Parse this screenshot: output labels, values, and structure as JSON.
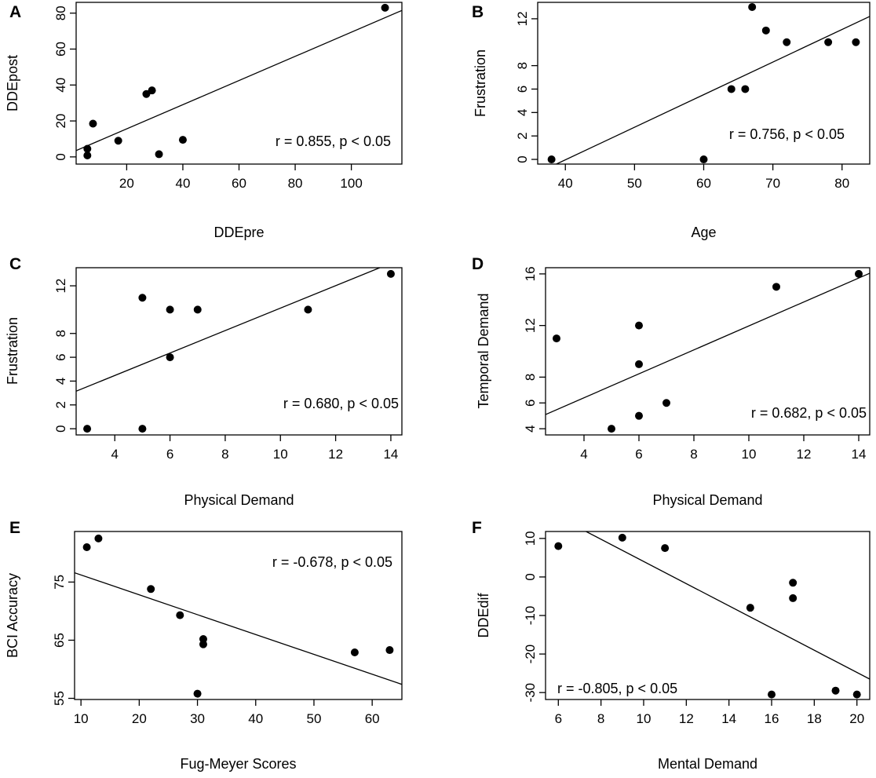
{
  "figure": {
    "background": "#ffffff",
    "ink": "#000000"
  },
  "chart_data": [
    {
      "id": "A",
      "type": "scatter",
      "panel_label": "A",
      "xlabel": "DDEpre",
      "ylabel": "DDEpost",
      "xlim": [
        2,
        118
      ],
      "ylim": [
        -4,
        86
      ],
      "xticks": [
        20,
        40,
        60,
        80,
        100
      ],
      "yticks": [
        0,
        20,
        40,
        60,
        80
      ],
      "annotation": "r = 0.855, p < 0.05",
      "annotation_position": "lower-right",
      "points": [
        [
          6,
          4.5
        ],
        [
          6,
          0.8
        ],
        [
          8,
          18.5
        ],
        [
          17,
          9
        ],
        [
          27,
          35
        ],
        [
          29,
          37
        ],
        [
          31.5,
          1.5
        ],
        [
          40,
          9.5
        ],
        [
          112,
          83
        ]
      ],
      "fit_line": [
        [
          2,
          3.5
        ],
        [
          118,
          81.5
        ]
      ]
    },
    {
      "id": "B",
      "type": "scatter",
      "panel_label": "B",
      "xlabel": "Age",
      "ylabel": "Frustration",
      "xlim": [
        36,
        84
      ],
      "ylim": [
        -0.4,
        13.4
      ],
      "xticks": [
        40,
        50,
        60,
        70,
        80
      ],
      "yticks": [
        0,
        2,
        4,
        6,
        8,
        12
      ],
      "annotation": "r = 0.756, p < 0.05",
      "annotation_position": "lower-right",
      "points": [
        [
          38,
          0
        ],
        [
          60,
          0
        ],
        [
          64,
          6
        ],
        [
          66,
          6
        ],
        [
          67,
          13
        ],
        [
          69,
          11
        ],
        [
          72,
          10
        ],
        [
          78,
          10
        ],
        [
          82,
          10
        ]
      ],
      "fit_line": [
        [
          38.7,
          -0.4
        ],
        [
          84,
          12.2
        ]
      ]
    },
    {
      "id": "C",
      "type": "scatter",
      "panel_label": "C",
      "xlabel": "Physical Demand",
      "ylabel": "Frustration",
      "xlim": [
        2.6,
        14.4
      ],
      "ylim": [
        -0.52,
        13.52
      ],
      "xticks": [
        4,
        6,
        8,
        10,
        12,
        14
      ],
      "yticks": [
        0,
        2,
        4,
        6,
        8,
        12
      ],
      "annotation": "r = 0.680, p < 0.05",
      "annotation_position": "lower-right",
      "points": [
        [
          3,
          0
        ],
        [
          5,
          0
        ],
        [
          5,
          11
        ],
        [
          6,
          10
        ],
        [
          6,
          6
        ],
        [
          7,
          10
        ],
        [
          11,
          10
        ],
        [
          14,
          13
        ]
      ],
      "fit_line": [
        [
          2.6,
          3.15
        ],
        [
          13.6,
          13.52
        ]
      ]
    },
    {
      "id": "D",
      "type": "scatter",
      "panel_label": "D",
      "xlabel": "Physical Demand",
      "ylabel": "Temporal Demand",
      "xlim": [
        2.6,
        14.4
      ],
      "ylim": [
        3.52,
        16.48
      ],
      "xticks": [
        4,
        6,
        8,
        10,
        12,
        14
      ],
      "yticks": [
        4,
        6,
        8,
        12,
        16
      ],
      "annotation": "r = 0.682, p < 0.05",
      "annotation_position": "lower-right",
      "points": [
        [
          3,
          11
        ],
        [
          5,
          4
        ],
        [
          6,
          12
        ],
        [
          6,
          9
        ],
        [
          6,
          5
        ],
        [
          7,
          6
        ],
        [
          11,
          15
        ],
        [
          14,
          16
        ]
      ],
      "fit_line": [
        [
          2.6,
          5.1
        ],
        [
          14.4,
          16.05
        ]
      ]
    },
    {
      "id": "E",
      "type": "scatter",
      "panel_label": "E",
      "xlabel": "Fug-Meyer Scores",
      "ylabel": "BCI Accuracy",
      "xlim": [
        8.9,
        65.1
      ],
      "ylim": [
        54.8,
        83.7
      ],
      "xticks": [
        10,
        20,
        30,
        40,
        50,
        60
      ],
      "yticks": [
        55,
        65,
        75
      ],
      "annotation": "r = -0.678, p < 0.05",
      "annotation_position": "top-right",
      "points": [
        [
          11,
          81
        ],
        [
          13,
          82.5
        ],
        [
          22,
          73.8
        ],
        [
          27,
          69.3
        ],
        [
          31,
          65.2
        ],
        [
          31,
          64.3
        ],
        [
          30,
          55.8
        ],
        [
          57,
          62.9
        ],
        [
          63,
          63.3
        ]
      ],
      "fit_line": [
        [
          8.9,
          76.6
        ],
        [
          65.1,
          57.4
        ]
      ]
    },
    {
      "id": "F",
      "type": "scatter",
      "panel_label": "F",
      "xlabel": "Mental Demand",
      "ylabel": "DDEdif",
      "xlim": [
        5.4,
        20.6
      ],
      "ylim": [
        -31.8,
        11.8
      ],
      "xticks": [
        6,
        8,
        10,
        12,
        14,
        16,
        18,
        20
      ],
      "yticks": [
        10,
        0,
        -10,
        -20,
        -30
      ],
      "annotation": "r = -0.805, p < 0.05",
      "annotation_position": "bottom-left",
      "points": [
        [
          6,
          8
        ],
        [
          9,
          10.2
        ],
        [
          11,
          7.5
        ],
        [
          15,
          -8
        ],
        [
          16,
          -30.5
        ],
        [
          17,
          -1.5
        ],
        [
          17,
          -5.5
        ],
        [
          19,
          -29.5
        ],
        [
          20,
          -30.5
        ]
      ],
      "fit_line": [
        [
          7.3,
          11.8
        ],
        [
          20.6,
          -26.5
        ]
      ]
    }
  ]
}
